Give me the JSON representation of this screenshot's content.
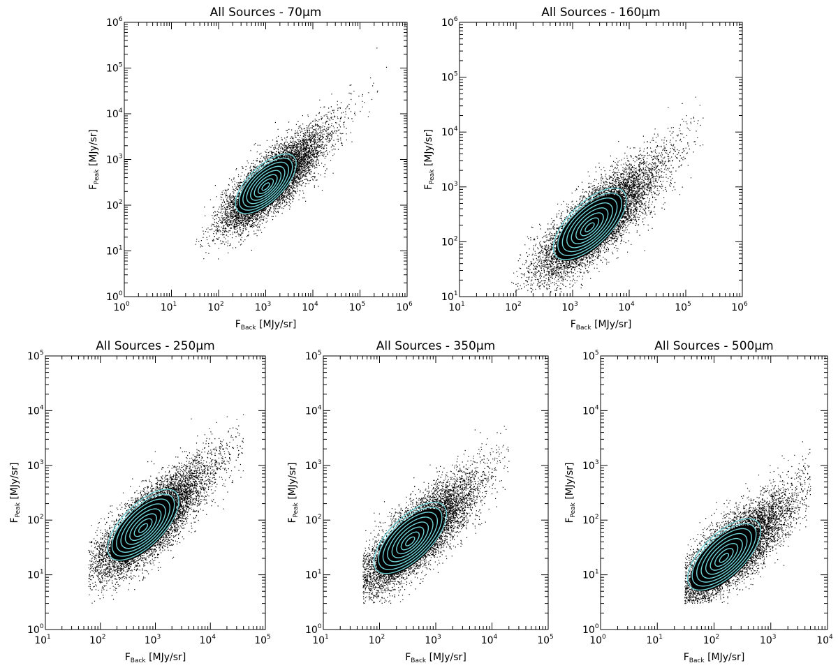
{
  "chart_data": [
    {
      "type": "scatter",
      "title": "All Sources - 70μm",
      "xlabel": "F_Back [MJy/sr]",
      "ylabel": "F_Peak [MJy/sr]",
      "xscale": "log",
      "yscale": "log",
      "xlim": [
        1,
        1000000
      ],
      "ylim": [
        1,
        1000000
      ],
      "xtick_exponents": [
        0,
        1,
        2,
        3,
        4,
        5,
        6
      ],
      "ytick_exponents": [
        0,
        1,
        2,
        3,
        4,
        5,
        6
      ],
      "point_color": "#000000",
      "contour_color": "#6fd3d8",
      "points_summary": {
        "core_x": 1000,
        "core_y": 250,
        "x_extent": [
          30,
          400000
        ],
        "y_extent": [
          4,
          600000
        ]
      }
    },
    {
      "type": "scatter",
      "title": "All Sources - 160μm",
      "xlabel": "F_Back [MJy/sr]",
      "ylabel": "F_Peak [MJy/sr]",
      "xscale": "log",
      "yscale": "log",
      "xlim": [
        10,
        1000000
      ],
      "ylim": [
        10,
        1000000
      ],
      "xtick_exponents": [
        1,
        2,
        3,
        4,
        5,
        6
      ],
      "ytick_exponents": [
        1,
        2,
        3,
        4,
        5,
        6
      ],
      "point_color": "#000000",
      "contour_color": "#6fd3d8",
      "points_summary": {
        "core_x": 2000,
        "core_y": 180,
        "x_extent": [
          80,
          200000
        ],
        "y_extent": [
          12,
          300000
        ]
      }
    },
    {
      "type": "scatter",
      "title": "All Sources - 250μm",
      "xlabel": "F_Back [MJy/sr]",
      "ylabel": "F_Peak [MJy/sr]",
      "xscale": "log",
      "yscale": "log",
      "xlim": [
        10,
        100000
      ],
      "ylim": [
        1,
        100000
      ],
      "xtick_exponents": [
        1,
        2,
        3,
        4,
        5
      ],
      "ytick_exponents": [
        0,
        1,
        2,
        3,
        4,
        5
      ],
      "point_color": "#000000",
      "contour_color": "#6fd3d8",
      "points_summary": {
        "core_x": 600,
        "core_y": 70,
        "x_extent": [
          60,
          40000
        ],
        "y_extent": [
          3,
          60000
        ]
      }
    },
    {
      "type": "scatter",
      "title": "All Sources - 350μm",
      "xlabel": "F_Back [MJy/sr]",
      "ylabel": "F_Peak [MJy/sr]",
      "xscale": "log",
      "yscale": "log",
      "xlim": [
        10,
        100000
      ],
      "ylim": [
        1,
        100000
      ],
      "xtick_exponents": [
        1,
        2,
        3,
        4,
        5
      ],
      "ytick_exponents": [
        0,
        1,
        2,
        3,
        4,
        5
      ],
      "point_color": "#000000",
      "contour_color": "#6fd3d8",
      "points_summary": {
        "core_x": 350,
        "core_y": 40,
        "x_extent": [
          50,
          20000
        ],
        "y_extent": [
          3,
          30000
        ]
      }
    },
    {
      "type": "scatter",
      "title": "All Sources - 500μm",
      "xlabel": "F_Back [MJy/sr]",
      "ylabel": "F_Peak [MJy/sr]",
      "xscale": "log",
      "yscale": "log",
      "xlim": [
        1,
        10000
      ],
      "ylim": [
        1,
        100000
      ],
      "xtick_exponents": [
        0,
        1,
        2,
        3,
        4
      ],
      "ytick_exponents": [
        0,
        1,
        2,
        3,
        4,
        5
      ],
      "point_color": "#000000",
      "contour_color": "#6fd3d8",
      "points_summary": {
        "core_x": 150,
        "core_y": 20,
        "x_extent": [
          30,
          5000
        ],
        "y_extent": [
          3,
          20000
        ]
      }
    }
  ]
}
